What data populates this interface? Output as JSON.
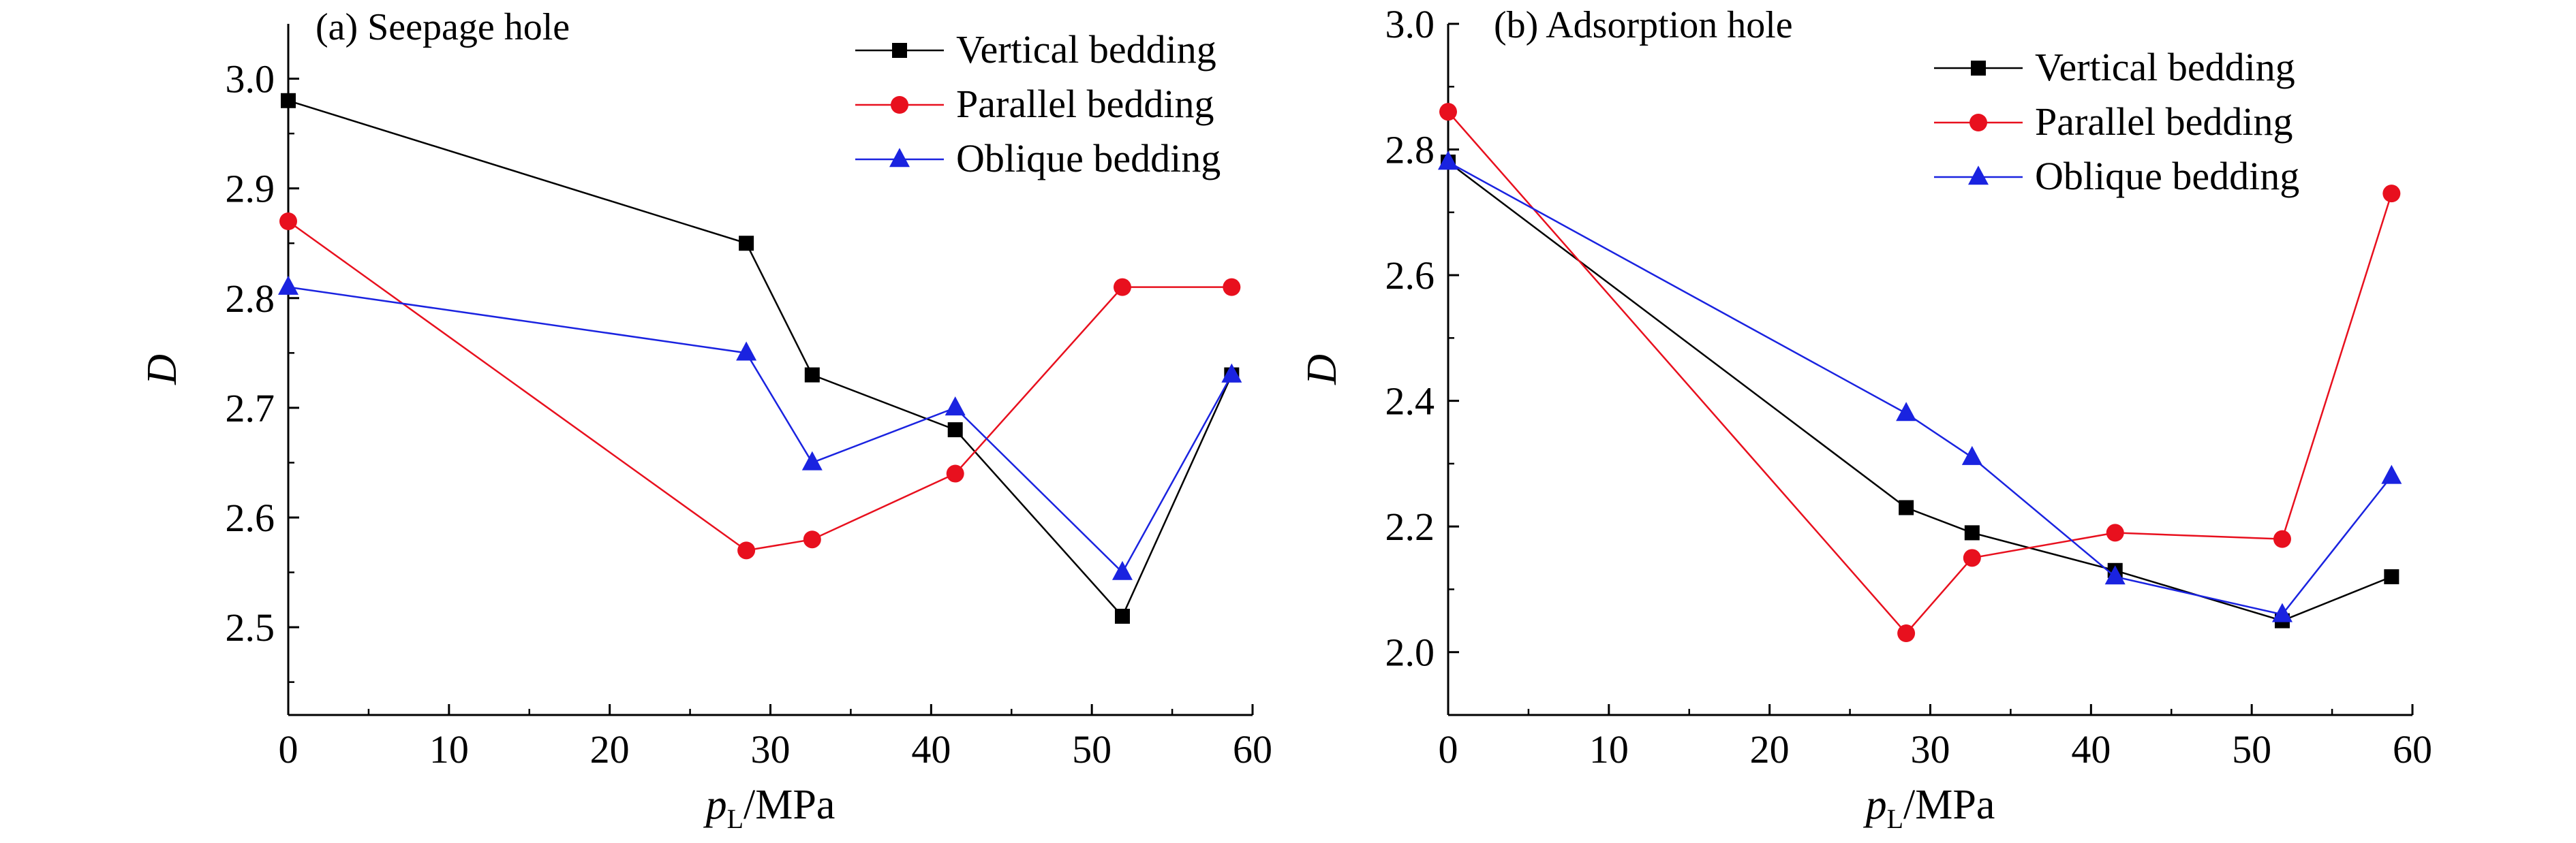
{
  "chart_data": [
    {
      "type": "line",
      "title": "(a) Seepage hole",
      "xlabel": "p_L/MPa",
      "xlabel_main": "p",
      "xlabel_sub": "L",
      "xlabel_unit": "/MPa",
      "ylabel": "D",
      "xlim": [
        0,
        60
      ],
      "ylim": [
        2.42,
        3.05
      ],
      "xticks": [
        0,
        10,
        20,
        30,
        40,
        50,
        60
      ],
      "yticks": [
        2.5,
        2.6,
        2.7,
        2.8,
        2.9,
        3.0
      ],
      "ytick_labels": [
        "2.5",
        "2.6",
        "2.7",
        "2.8",
        "2.9",
        "3.0"
      ],
      "grid": false,
      "legend_position": "top-right",
      "series": [
        {
          "name": "Vertical bedding",
          "color": "#000000",
          "marker": "square",
          "x": [
            0,
            28.5,
            32.6,
            41.5,
            51.9,
            58.7
          ],
          "y": [
            2.98,
            2.85,
            2.73,
            2.68,
            2.51,
            2.73
          ]
        },
        {
          "name": "Parallel bedding",
          "color": "#e8101e",
          "marker": "circle",
          "x": [
            0,
            28.5,
            32.6,
            41.5,
            51.9,
            58.7
          ],
          "y": [
            2.87,
            2.57,
            2.58,
            2.64,
            2.81,
            2.81
          ]
        },
        {
          "name": "Oblique bedding",
          "color": "#1a23e0",
          "marker": "triangle",
          "x": [
            0,
            28.5,
            32.6,
            41.5,
            51.9,
            58.7
          ],
          "y": [
            2.81,
            2.75,
            2.65,
            2.7,
            2.55,
            2.73
          ]
        }
      ]
    },
    {
      "type": "line",
      "title": "(b) Adsorption hole",
      "xlabel": "p_L/MPa",
      "xlabel_main": "p",
      "xlabel_sub": "L",
      "xlabel_unit": "/MPa",
      "ylabel": "D",
      "xlim": [
        0,
        60
      ],
      "ylim": [
        1.9,
        3.0
      ],
      "xticks": [
        0,
        10,
        20,
        30,
        40,
        50,
        60
      ],
      "yticks": [
        2.0,
        2.2,
        2.4,
        2.6,
        2.8,
        3.0
      ],
      "ytick_labels": [
        "2.0",
        "2.2",
        "2.4",
        "2.6",
        "2.8",
        "3.0"
      ],
      "grid": false,
      "legend_position": "top-right",
      "series": [
        {
          "name": "Vertical bedding",
          "color": "#000000",
          "marker": "square",
          "x": [
            0,
            28.5,
            32.6,
            41.5,
            51.9,
            58.7
          ],
          "y": [
            2.78,
            2.23,
            2.19,
            2.13,
            2.05,
            2.12
          ]
        },
        {
          "name": "Parallel bedding",
          "color": "#e8101e",
          "marker": "circle",
          "x": [
            0,
            28.5,
            32.6,
            41.5,
            51.9,
            58.7
          ],
          "y": [
            2.86,
            2.03,
            2.15,
            2.19,
            2.18,
            2.73
          ]
        },
        {
          "name": "Oblique bedding",
          "color": "#1a23e0",
          "marker": "triangle",
          "x": [
            0,
            28.5,
            32.6,
            41.5,
            51.9,
            58.7
          ],
          "y": [
            2.78,
            2.38,
            2.31,
            2.12,
            2.06,
            2.28
          ]
        }
      ]
    }
  ]
}
